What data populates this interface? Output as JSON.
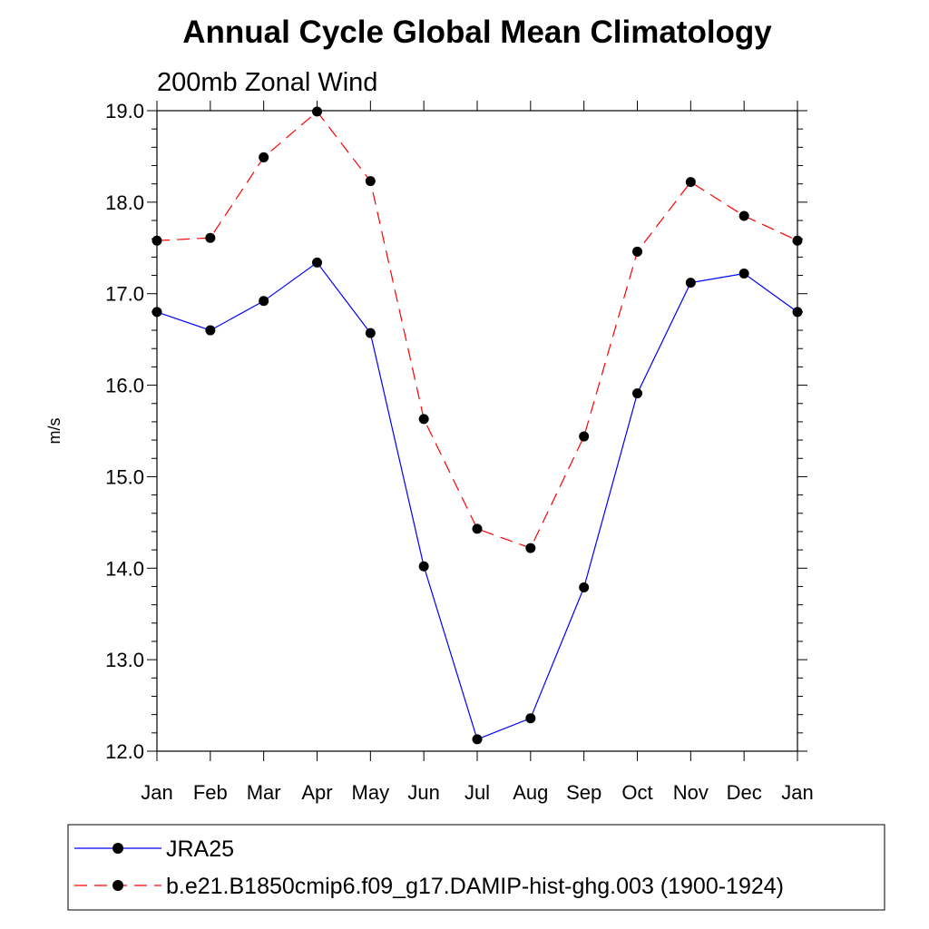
{
  "chart_data": {
    "type": "line",
    "title": "Annual Cycle Global Mean Climatology",
    "subtitle": "200mb Zonal Wind",
    "xlabel": "",
    "ylabel": "m/s",
    "ylim": [
      12.0,
      19.0
    ],
    "yticks": [
      "12.0",
      "13.0",
      "14.0",
      "15.0",
      "16.0",
      "17.0",
      "18.0",
      "19.0"
    ],
    "categories": [
      "Jan",
      "Feb",
      "Mar",
      "Apr",
      "May",
      "Jun",
      "Jul",
      "Aug",
      "Sep",
      "Oct",
      "Nov",
      "Dec",
      "Jan"
    ],
    "grid": false,
    "legend_position": "bottom",
    "series": [
      {
        "name": "JRA25",
        "color": "#0000ff",
        "line_style": "solid",
        "marker": "filled-circle",
        "values": [
          16.8,
          16.6,
          16.92,
          17.34,
          16.57,
          14.02,
          12.13,
          12.36,
          13.79,
          15.91,
          17.12,
          17.22,
          16.8
        ]
      },
      {
        "name": "b.e21.B1850cmip6.f09_g17.DAMIP-hist-ghg.003 (1900-1924)",
        "color": "#ff0000",
        "line_style": "dashed",
        "marker": "filled-circle",
        "values": [
          17.58,
          17.61,
          18.49,
          18.99,
          18.23,
          15.63,
          14.43,
          14.22,
          15.44,
          17.46,
          18.22,
          17.85,
          17.58
        ]
      }
    ]
  }
}
